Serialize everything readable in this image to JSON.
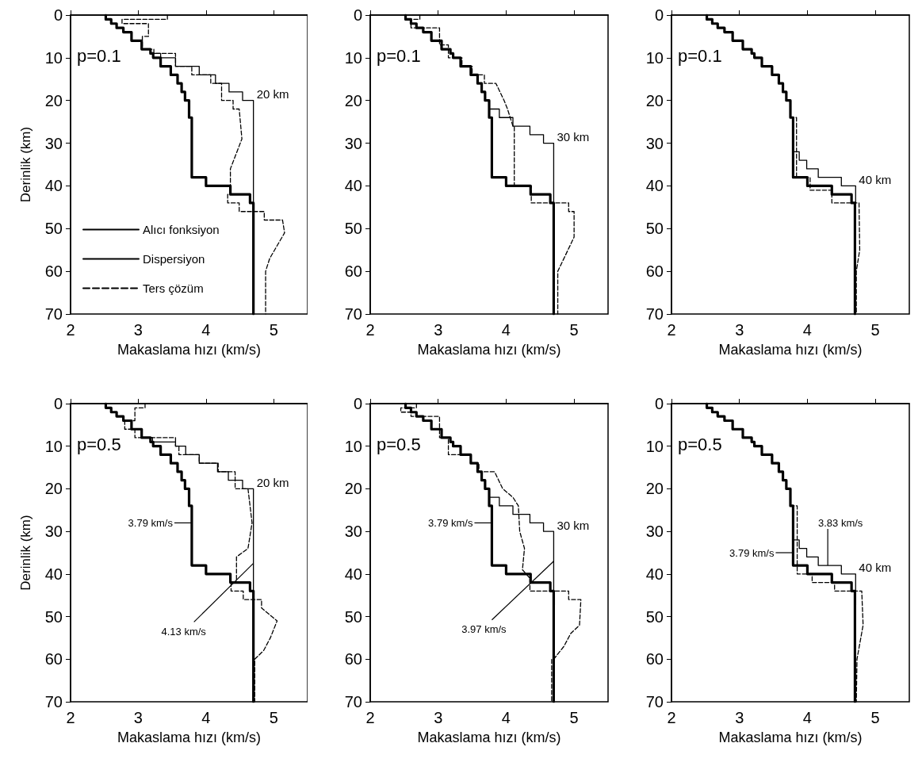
{
  "chart_data": [
    {
      "type": "line",
      "xlabel": "Makaslama hızı (km/s)",
      "ylabel": "Derinlik (km)",
      "xlim": [
        2,
        5.5
      ],
      "xticks": [
        2,
        3,
        4,
        5
      ],
      "ylim": [
        70,
        0
      ],
      "yticks": [
        0,
        10,
        20,
        30,
        40,
        50,
        60,
        70
      ],
      "grid": false,
      "marker": "none",
      "legend": "bottom left",
      "annotations": [
        "p=0.1",
        {
          "text": "20 km",
          "x": 4.7,
          "y": 20
        }
      ],
      "series": [
        {
          "name": "Alıcı fonksiyon",
          "color": "#000000",
          "line_style": "solid",
          "x": [
            2.52,
            2.52,
            2.6,
            2.6,
            2.68,
            2.68,
            2.78,
            2.78,
            2.9,
            2.9,
            3.05,
            3.05,
            3.18,
            3.18,
            3.22,
            3.22,
            3.33,
            3.33,
            3.48,
            3.48,
            3.58,
            3.58,
            3.64,
            3.64,
            3.69,
            3.69,
            3.75,
            3.75,
            3.79,
            3.79,
            4.0,
            4.0,
            4.36,
            4.36,
            4.65,
            4.65,
            4.7,
            4.7
          ],
          "values": [
            0,
            1,
            1,
            2,
            2,
            3,
            3,
            4,
            4,
            6,
            6,
            8,
            8,
            9,
            9,
            10,
            10,
            12,
            12,
            14,
            14,
            16,
            16,
            18,
            18,
            20,
            20,
            24,
            24,
            38,
            38,
            40,
            40,
            42,
            42,
            44,
            44,
            70
          ]
        },
        {
          "name": "Dispersiyon",
          "color": "#000000",
          "line_style": "solid",
          "x": [
            2.52,
            2.52,
            2.6,
            2.6,
            2.68,
            2.68,
            2.78,
            2.78,
            2.9,
            2.9,
            3.05,
            3.05,
            3.18,
            3.18,
            3.33,
            3.33,
            3.55,
            3.55,
            3.9,
            3.9,
            4.14,
            4.14,
            4.34,
            4.34,
            4.54,
            4.54,
            4.7,
            4.7
          ],
          "values": [
            0,
            1,
            1,
            2,
            2,
            3,
            3,
            4,
            4,
            6,
            6,
            8,
            8,
            9,
            9,
            10,
            10,
            12,
            12,
            14,
            14,
            16,
            16,
            18,
            18,
            20,
            20,
            70
          ]
        },
        {
          "name": "Ters çözüm",
          "color": "#000000",
          "line_style": "dashed",
          "x": [
            3.43,
            3.43,
            2.76,
            2.76,
            3.15,
            3.15,
            3.06,
            3.06,
            3.23,
            3.23,
            3.55,
            3.55,
            3.79,
            3.79,
            4.07,
            4.07,
            4.23,
            4.23,
            4.4,
            4.4,
            4.49,
            4.53,
            4.36,
            4.36,
            4.32,
            4.32,
            4.49,
            4.49,
            4.86,
            4.86,
            5.13,
            5.16,
            4.94,
            4.88,
            4.88
          ],
          "values": [
            0,
            1,
            1,
            2,
            2,
            5,
            5,
            8,
            8,
            9,
            9,
            12,
            12,
            14,
            14,
            16,
            16,
            20,
            20,
            22,
            22,
            29,
            36,
            42,
            42,
            44,
            44,
            46,
            46,
            48,
            48,
            51,
            57,
            60,
            70
          ]
        }
      ]
    },
    {
      "type": "line",
      "xlabel": "Makaslama hızı (km/s)",
      "xlim": [
        2,
        5.5
      ],
      "xticks": [
        2,
        3,
        4,
        5
      ],
      "ylim": [
        70,
        0
      ],
      "yticks": [
        0,
        10,
        20,
        30,
        40,
        50,
        60,
        70
      ],
      "grid": false,
      "marker": "none",
      "annotations": [
        "p=0.1",
        {
          "text": "30 km",
          "x": 4.7,
          "y": 30
        }
      ],
      "series": [
        {
          "color": "#000000",
          "line_style": "solid",
          "x": [
            2.52,
            2.52,
            2.6,
            2.6,
            2.68,
            2.68,
            2.78,
            2.78,
            2.9,
            2.9,
            3.05,
            3.05,
            3.18,
            3.18,
            3.22,
            3.22,
            3.33,
            3.33,
            3.48,
            3.48,
            3.58,
            3.58,
            3.64,
            3.64,
            3.69,
            3.69,
            3.75,
            3.75,
            3.79,
            3.79,
            4.0,
            4.0,
            4.36,
            4.36,
            4.65,
            4.65,
            4.7,
            4.7
          ],
          "values": [
            0,
            1,
            1,
            2,
            2,
            3,
            3,
            4,
            4,
            6,
            6,
            8,
            8,
            9,
            9,
            10,
            10,
            12,
            12,
            14,
            14,
            16,
            16,
            18,
            18,
            20,
            20,
            24,
            24,
            38,
            38,
            40,
            40,
            42,
            42,
            44,
            44,
            70
          ]
        },
        {
          "color": "#000000",
          "line_style": "solid",
          "x": [
            2.52,
            2.52,
            2.6,
            2.6,
            2.68,
            2.68,
            2.78,
            2.78,
            2.9,
            2.9,
            3.05,
            3.05,
            3.18,
            3.18,
            3.22,
            3.22,
            3.33,
            3.33,
            3.48,
            3.48,
            3.58,
            3.58,
            3.64,
            3.64,
            3.69,
            3.69,
            3.75,
            3.75,
            3.9,
            3.9,
            4.1,
            4.1,
            4.35,
            4.35,
            4.55,
            4.55,
            4.7,
            4.7
          ],
          "values": [
            0,
            1,
            1,
            2,
            2,
            3,
            3,
            4,
            4,
            6,
            6,
            8,
            8,
            9,
            9,
            10,
            10,
            12,
            12,
            14,
            14,
            16,
            16,
            18,
            18,
            20,
            20,
            22,
            22,
            24,
            24,
            26,
            26,
            28,
            28,
            30,
            30,
            70
          ]
        },
        {
          "color": "#000000",
          "line_style": "dashed",
          "x": [
            2.73,
            2.73,
            2.6,
            2.6,
            3.02,
            3.02,
            3.15,
            3.15,
            3.35,
            3.35,
            3.5,
            3.5,
            3.68,
            3.68,
            3.85,
            3.97,
            4.02,
            4.1,
            4.12,
            4.12,
            4.37,
            4.37,
            4.92,
            4.92,
            5.0,
            5.0,
            4.88,
            4.76,
            4.76
          ],
          "values": [
            0,
            1,
            1,
            3,
            3,
            7,
            7,
            10,
            10,
            12,
            12,
            14,
            14,
            16,
            16,
            20,
            22,
            26,
            26,
            40,
            40,
            44,
            44,
            46,
            46,
            52,
            56,
            60,
            70
          ]
        }
      ]
    },
    {
      "type": "line",
      "xlabel": "Makaslama hızı (km/s)",
      "xlim": [
        2,
        5.5
      ],
      "xticks": [
        2,
        3,
        4,
        5
      ],
      "ylim": [
        70,
        0
      ],
      "yticks": [
        0,
        10,
        20,
        30,
        40,
        50,
        60,
        70
      ],
      "grid": false,
      "marker": "none",
      "annotations": [
        "p=0.1",
        {
          "text": "40 km",
          "x": 4.71,
          "y": 40
        }
      ],
      "series": [
        {
          "color": "#000000",
          "line_style": "solid",
          "x": [
            2.52,
            2.52,
            2.6,
            2.6,
            2.68,
            2.68,
            2.78,
            2.78,
            2.9,
            2.9,
            3.05,
            3.05,
            3.18,
            3.18,
            3.22,
            3.22,
            3.33,
            3.33,
            3.48,
            3.48,
            3.58,
            3.58,
            3.64,
            3.64,
            3.69,
            3.69,
            3.75,
            3.75,
            3.79,
            3.79,
            4.0,
            4.0,
            4.36,
            4.36,
            4.65,
            4.65,
            4.7,
            4.7
          ],
          "values": [
            0,
            1,
            1,
            2,
            2,
            3,
            3,
            4,
            4,
            6,
            6,
            8,
            8,
            9,
            9,
            10,
            10,
            12,
            12,
            14,
            14,
            16,
            16,
            18,
            18,
            20,
            20,
            24,
            24,
            38,
            38,
            40,
            40,
            42,
            42,
            44,
            44,
            70
          ]
        },
        {
          "color": "#000000",
          "line_style": "solid",
          "x": [
            2.52,
            2.52,
            2.6,
            2.6,
            2.68,
            2.68,
            2.78,
            2.78,
            2.9,
            2.9,
            3.05,
            3.05,
            3.18,
            3.18,
            3.22,
            3.22,
            3.33,
            3.33,
            3.48,
            3.48,
            3.58,
            3.58,
            3.64,
            3.64,
            3.69,
            3.69,
            3.75,
            3.75,
            3.79,
            3.79,
            3.88,
            3.88,
            3.99,
            3.99,
            4.16,
            4.16,
            4.5,
            4.5,
            4.71,
            4.71
          ],
          "values": [
            0,
            1,
            1,
            2,
            2,
            3,
            3,
            4,
            4,
            6,
            6,
            8,
            8,
            9,
            9,
            10,
            10,
            12,
            12,
            14,
            14,
            16,
            16,
            18,
            18,
            20,
            20,
            24,
            24,
            32,
            32,
            34,
            34,
            36,
            36,
            38,
            38,
            40,
            40,
            70
          ]
        },
        {
          "color": "#000000",
          "line_style": "dashed",
          "x": [
            2.52,
            2.52,
            2.6,
            2.6,
            2.68,
            2.68,
            2.78,
            2.78,
            2.9,
            2.9,
            3.05,
            3.05,
            3.18,
            3.18,
            3.22,
            3.22,
            3.33,
            3.33,
            3.48,
            3.48,
            3.58,
            3.58,
            3.64,
            3.64,
            3.69,
            3.69,
            3.75,
            3.75,
            3.84,
            3.84,
            4.04,
            4.04,
            4.36,
            4.36,
            4.76,
            4.77,
            4.72,
            4.72
          ],
          "values": [
            0,
            1,
            1,
            2,
            2,
            3,
            3,
            4,
            4,
            6,
            6,
            8,
            8,
            9,
            9,
            10,
            10,
            12,
            12,
            14,
            14,
            16,
            16,
            18,
            18,
            20,
            20,
            24,
            24,
            38,
            38,
            41,
            41,
            44,
            44,
            55,
            60,
            70
          ]
        }
      ]
    },
    {
      "type": "line",
      "xlabel": "Makaslama hızı (km/s)",
      "ylabel": "Derinlik (km)",
      "xlim": [
        2,
        5.5
      ],
      "xticks": [
        2,
        3,
        4,
        5
      ],
      "ylim": [
        70,
        0
      ],
      "yticks": [
        0,
        10,
        20,
        30,
        40,
        50,
        60,
        70
      ],
      "grid": false,
      "marker": "none",
      "annotations": [
        "p=0.5",
        {
          "text": "20 km",
          "x": 4.7,
          "y": 20
        },
        {
          "text": "3.79 km/s",
          "x": 3.79,
          "y": 28
        },
        {
          "text": "4.13 km/s",
          "x": 4.7,
          "y": 37.5
        }
      ],
      "series": [
        {
          "color": "#000000",
          "line_style": "solid",
          "x": [
            2.52,
            2.52,
            2.6,
            2.6,
            2.68,
            2.68,
            2.78,
            2.78,
            2.9,
            2.9,
            3.05,
            3.05,
            3.18,
            3.18,
            3.22,
            3.22,
            3.33,
            3.33,
            3.48,
            3.48,
            3.58,
            3.58,
            3.64,
            3.64,
            3.69,
            3.69,
            3.75,
            3.75,
            3.79,
            3.79,
            4.0,
            4.0,
            4.36,
            4.36,
            4.65,
            4.65,
            4.7,
            4.7
          ],
          "values": [
            0,
            1,
            1,
            2,
            2,
            3,
            3,
            4,
            4,
            6,
            6,
            8,
            8,
            9,
            9,
            10,
            10,
            12,
            12,
            14,
            14,
            16,
            16,
            18,
            18,
            20,
            20,
            24,
            24,
            38,
            38,
            40,
            40,
            42,
            42,
            44,
            44,
            70
          ]
        },
        {
          "color": "#000000",
          "line_style": "solid",
          "x": [
            2.52,
            2.52,
            2.6,
            2.6,
            2.68,
            2.68,
            2.78,
            2.78,
            2.9,
            2.9,
            3.05,
            3.05,
            3.21,
            3.21,
            3.55,
            3.55,
            3.7,
            3.7,
            3.9,
            3.9,
            4.17,
            4.17,
            4.33,
            4.33,
            4.54,
            4.54,
            4.7,
            4.7
          ],
          "values": [
            0,
            1,
            1,
            2,
            2,
            3,
            3,
            4,
            4,
            6,
            6,
            8,
            8,
            9,
            9,
            10,
            10,
            12,
            12,
            14,
            14,
            16,
            16,
            18,
            18,
            20,
            20,
            70
          ]
        },
        {
          "color": "#000000",
          "line_style": "dashed",
          "x": [
            3.1,
            3.1,
            2.95,
            2.95,
            2.8,
            2.8,
            2.95,
            2.95,
            3.55,
            3.55,
            3.6,
            3.6,
            3.9,
            3.9,
            4.18,
            4.18,
            4.43,
            4.43,
            4.62,
            4.68,
            4.62,
            4.45,
            4.45,
            4.37,
            4.37,
            4.55,
            4.55,
            4.82,
            4.82,
            5.05,
            4.95,
            4.85,
            4.72,
            4.72
          ],
          "values": [
            0,
            1,
            1,
            4,
            4,
            6,
            6,
            8,
            8,
            10,
            10,
            12,
            12,
            14,
            14,
            16,
            16,
            20,
            20,
            28,
            34,
            36,
            42,
            42,
            44,
            44,
            46,
            46,
            48,
            51,
            55,
            58,
            60,
            70
          ]
        }
      ]
    },
    {
      "type": "line",
      "xlabel": "Makaslama hızı (km/s)",
      "xlim": [
        2,
        5.5
      ],
      "xticks": [
        2,
        3,
        4,
        5
      ],
      "ylim": [
        70,
        0
      ],
      "yticks": [
        0,
        10,
        20,
        30,
        40,
        50,
        60,
        70
      ],
      "grid": false,
      "marker": "none",
      "annotations": [
        "p=0.5",
        {
          "text": "30 km",
          "x": 4.7,
          "y": 30
        },
        {
          "text": "3.79 km/s",
          "x": 3.79,
          "y": 28
        },
        {
          "text": "3.97 km/s",
          "x": 4.7,
          "y": 37
        }
      ],
      "series": [
        {
          "color": "#000000",
          "line_style": "solid",
          "x": [
            2.52,
            2.52,
            2.6,
            2.6,
            2.68,
            2.68,
            2.78,
            2.78,
            2.9,
            2.9,
            3.05,
            3.05,
            3.18,
            3.18,
            3.22,
            3.22,
            3.33,
            3.33,
            3.48,
            3.48,
            3.58,
            3.58,
            3.64,
            3.64,
            3.69,
            3.69,
            3.75,
            3.75,
            3.79,
            3.79,
            4.0,
            4.0,
            4.36,
            4.36,
            4.65,
            4.65,
            4.7,
            4.7
          ],
          "values": [
            0,
            1,
            1,
            2,
            2,
            3,
            3,
            4,
            4,
            6,
            6,
            8,
            8,
            9,
            9,
            10,
            10,
            12,
            12,
            14,
            14,
            16,
            16,
            18,
            18,
            20,
            20,
            24,
            24,
            38,
            38,
            40,
            40,
            42,
            42,
            44,
            44,
            70
          ]
        },
        {
          "color": "#000000",
          "line_style": "solid",
          "x": [
            2.52,
            2.52,
            2.6,
            2.6,
            2.68,
            2.68,
            2.78,
            2.78,
            2.9,
            2.9,
            3.05,
            3.05,
            3.18,
            3.18,
            3.22,
            3.22,
            3.33,
            3.33,
            3.48,
            3.48,
            3.58,
            3.58,
            3.64,
            3.64,
            3.69,
            3.69,
            3.75,
            3.75,
            3.9,
            3.9,
            4.1,
            4.1,
            4.35,
            4.35,
            4.55,
            4.55,
            4.7,
            4.7
          ],
          "values": [
            0,
            1,
            1,
            2,
            2,
            3,
            3,
            4,
            4,
            6,
            6,
            8,
            8,
            9,
            9,
            10,
            10,
            12,
            12,
            14,
            14,
            16,
            16,
            18,
            18,
            20,
            20,
            22,
            22,
            24,
            24,
            26,
            26,
            28,
            28,
            30,
            30,
            70
          ]
        },
        {
          "color": "#000000",
          "line_style": "dashed",
          "x": [
            2.68,
            2.68,
            2.45,
            2.45,
            2.6,
            2.6,
            3.02,
            3.02,
            3.15,
            3.15,
            3.48,
            3.48,
            3.6,
            3.6,
            3.83,
            3.95,
            4.1,
            4.18,
            4.2,
            4.27,
            4.24,
            4.35,
            4.35,
            4.92,
            4.92,
            5.1,
            5.08,
            4.95,
            4.85,
            4.7,
            4.67,
            4.67
          ],
          "values": [
            0,
            1,
            1,
            2,
            2,
            3,
            3,
            8,
            8,
            12,
            12,
            14,
            14,
            16,
            16,
            20,
            22,
            24,
            30,
            34,
            39,
            41,
            44,
            44,
            46,
            46,
            52,
            54,
            57,
            60,
            60,
            70
          ]
        }
      ]
    },
    {
      "type": "line",
      "xlabel": "Makaslama hızı (km/s)",
      "xlim": [
        2,
        5.5
      ],
      "xticks": [
        2,
        3,
        4,
        5
      ],
      "ylim": [
        70,
        0
      ],
      "yticks": [
        0,
        10,
        20,
        30,
        40,
        50,
        60,
        70
      ],
      "grid": false,
      "marker": "none",
      "annotations": [
        "p=0.5",
        {
          "text": "40 km",
          "x": 4.71,
          "y": 40
        },
        {
          "text": "3.83 km/s",
          "x": 4.3,
          "y": 38
        },
        {
          "text": "3.79 km/s",
          "x": 3.79,
          "y": 35
        }
      ],
      "series": [
        {
          "color": "#000000",
          "line_style": "solid",
          "x": [
            2.52,
            2.52,
            2.6,
            2.6,
            2.68,
            2.68,
            2.78,
            2.78,
            2.9,
            2.9,
            3.05,
            3.05,
            3.18,
            3.18,
            3.22,
            3.22,
            3.33,
            3.33,
            3.48,
            3.48,
            3.58,
            3.58,
            3.64,
            3.64,
            3.69,
            3.69,
            3.75,
            3.75,
            3.79,
            3.79,
            4.0,
            4.0,
            4.36,
            4.36,
            4.65,
            4.65,
            4.7,
            4.7
          ],
          "values": [
            0,
            1,
            1,
            2,
            2,
            3,
            3,
            4,
            4,
            6,
            6,
            8,
            8,
            9,
            9,
            10,
            10,
            12,
            12,
            14,
            14,
            16,
            16,
            18,
            18,
            20,
            20,
            24,
            24,
            38,
            38,
            40,
            40,
            42,
            42,
            44,
            44,
            70
          ]
        },
        {
          "color": "#000000",
          "line_style": "solid",
          "x": [
            2.52,
            2.52,
            2.6,
            2.6,
            2.68,
            2.68,
            2.78,
            2.78,
            2.9,
            2.9,
            3.05,
            3.05,
            3.18,
            3.18,
            3.22,
            3.22,
            3.33,
            3.33,
            3.48,
            3.48,
            3.58,
            3.58,
            3.64,
            3.64,
            3.69,
            3.69,
            3.75,
            3.75,
            3.79,
            3.79,
            3.88,
            3.88,
            3.99,
            3.99,
            4.16,
            4.16,
            4.5,
            4.5,
            4.71,
            4.71
          ],
          "values": [
            0,
            1,
            1,
            2,
            2,
            3,
            3,
            4,
            4,
            6,
            6,
            8,
            8,
            9,
            9,
            10,
            10,
            12,
            12,
            14,
            14,
            16,
            16,
            18,
            18,
            20,
            20,
            24,
            24,
            32,
            32,
            34,
            34,
            36,
            36,
            38,
            38,
            40,
            40,
            70
          ]
        },
        {
          "color": "#000000",
          "line_style": "dashed",
          "x": [
            2.52,
            2.52,
            2.6,
            2.6,
            2.68,
            2.68,
            2.78,
            2.78,
            2.9,
            2.9,
            3.05,
            3.05,
            3.18,
            3.18,
            3.22,
            3.22,
            3.33,
            3.33,
            3.48,
            3.48,
            3.58,
            3.58,
            3.64,
            3.64,
            3.69,
            3.69,
            3.75,
            3.75,
            3.85,
            3.85,
            4.07,
            4.07,
            4.4,
            4.4,
            4.8,
            4.82,
            4.73,
            4.72
          ],
          "values": [
            0,
            1,
            1,
            2,
            2,
            3,
            3,
            4,
            4,
            6,
            6,
            8,
            8,
            9,
            9,
            10,
            10,
            12,
            12,
            14,
            14,
            16,
            16,
            18,
            18,
            20,
            20,
            24,
            24,
            40,
            40,
            42,
            42,
            44,
            44,
            52,
            60,
            70
          ]
        }
      ]
    }
  ]
}
